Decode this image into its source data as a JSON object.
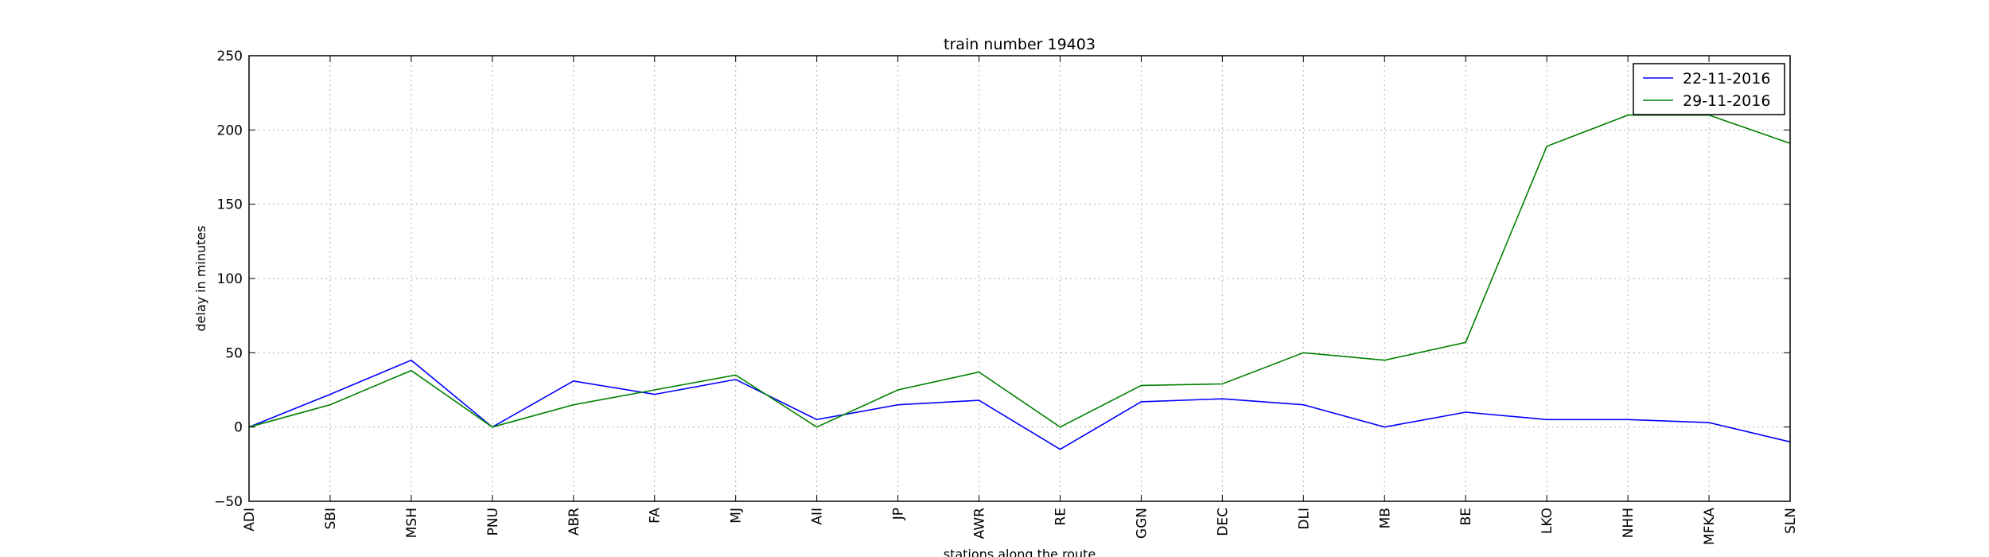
{
  "chart_data": {
    "type": "line",
    "title": "train number 19403",
    "xlabel": "stations along the route",
    "ylabel": "delay in minutes",
    "categories": [
      "ADI",
      "SBI",
      "MSH",
      "PNU",
      "ABR",
      "FA",
      "MJ",
      "AII",
      "JP",
      "AWR",
      "RE",
      "GGN",
      "DEC",
      "DLI",
      "MB",
      "BE",
      "LKO",
      "NHH",
      "MFKA",
      "SLN"
    ],
    "ylim": [
      -50,
      250
    ],
    "yticks": [
      -50,
      0,
      50,
      100,
      150,
      200,
      250
    ],
    "grid": true,
    "legend_position": "top-right",
    "series": [
      {
        "name": "22-11-2016",
        "color": "#0000ff",
        "values": [
          0,
          22,
          45,
          0,
          31,
          22,
          32,
          5,
          15,
          18,
          -15,
          17,
          19,
          15,
          0,
          10,
          5,
          5,
          3,
          -10
        ]
      },
      {
        "name": "29-11-2016",
        "color": "#008000",
        "values": [
          0,
          15,
          38,
          0,
          15,
          25,
          35,
          0,
          25,
          37,
          0,
          28,
          29,
          50,
          45,
          57,
          189,
          210,
          210,
          191
        ]
      }
    ]
  }
}
